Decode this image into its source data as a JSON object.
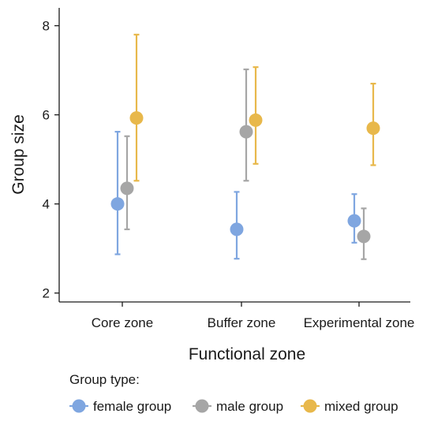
{
  "chart_data": {
    "type": "scatter",
    "title": "",
    "xlabel": "Functional zone",
    "ylabel": "Group size",
    "categories": [
      "Core zone",
      "Buffer zone",
      "Experimental zone"
    ],
    "ylim": [
      1.8,
      8.4
    ],
    "yticks": [
      2,
      4,
      6,
      8
    ],
    "grid": false,
    "legend": {
      "title": "Group type:",
      "placement": "bottom-left"
    },
    "series": [
      {
        "name": "female group",
        "color": "#7fa6e0",
        "values": [
          4.0,
          3.43,
          3.62
        ],
        "lower": [
          2.87,
          2.77,
          3.13
        ],
        "upper": [
          5.62,
          4.27,
          4.22
        ]
      },
      {
        "name": "male group",
        "color": "#a6a6a6",
        "values": [
          4.35,
          5.62,
          3.27
        ],
        "lower": [
          3.43,
          4.52,
          2.76
        ],
        "upper": [
          5.52,
          7.02,
          3.9
        ]
      },
      {
        "name": "mixed group",
        "color": "#e8b84b",
        "values": [
          5.93,
          5.88,
          5.7
        ],
        "lower": [
          4.52,
          4.9,
          4.87
        ],
        "upper": [
          7.8,
          7.07,
          6.7
        ]
      }
    ]
  }
}
